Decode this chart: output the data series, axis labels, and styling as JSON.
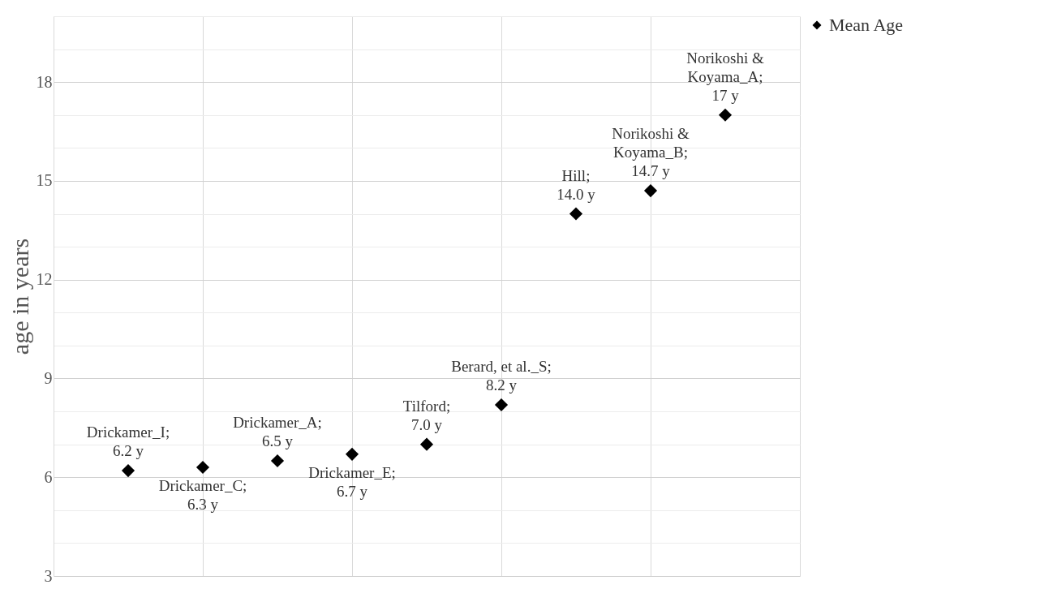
{
  "chart_data": {
    "type": "scatter",
    "ylabel": "age in years",
    "categories": [
      null,
      null,
      null,
      null,
      null,
      null,
      null,
      null,
      null
    ],
    "series": [
      {
        "name": "Mean Age",
        "color": "#000000",
        "values": [
          6.2,
          6.3,
          6.5,
          6.7,
          7.0,
          8.2,
          14.0,
          14.7,
          17
        ],
        "value_labels": [
          "Drickamer_I; 6.2 y",
          "Drickamer_C; 6.3 y",
          "Drickamer_A; 6.5 y",
          "Drickamer_E; 6.7 y",
          "Tilford; 7.0 y",
          "Berard, et al._S; 8.2 y",
          "Hill; 14.0 y",
          "Norikoshi & Koyama_B; 14.7 y",
          "Norikoshi & Koyama_A; 17 y"
        ]
      }
    ],
    "ylim": [
      3,
      20
    ],
    "yticks": [
      3,
      {
        "value": 4,
        "label": null
      },
      {
        "value": 5,
        "label": null
      },
      6,
      {
        "value": 7,
        "label": null
      },
      {
        "value": 8,
        "label": null
      },
      9,
      {
        "value": 10,
        "label": null
      },
      {
        "value": 11,
        "label": null
      },
      12,
      {
        "value": 13,
        "label": null
      },
      {
        "value": 14,
        "label": null
      },
      15,
      {
        "value": 16,
        "label": null
      },
      {
        "value": 17,
        "label": null
      },
      18,
      {
        "value": 19,
        "label": null
      },
      {
        "value": 20,
        "label": null
      }
    ],
    "grid": true,
    "legend": "right",
    "marker": "diamond"
  }
}
